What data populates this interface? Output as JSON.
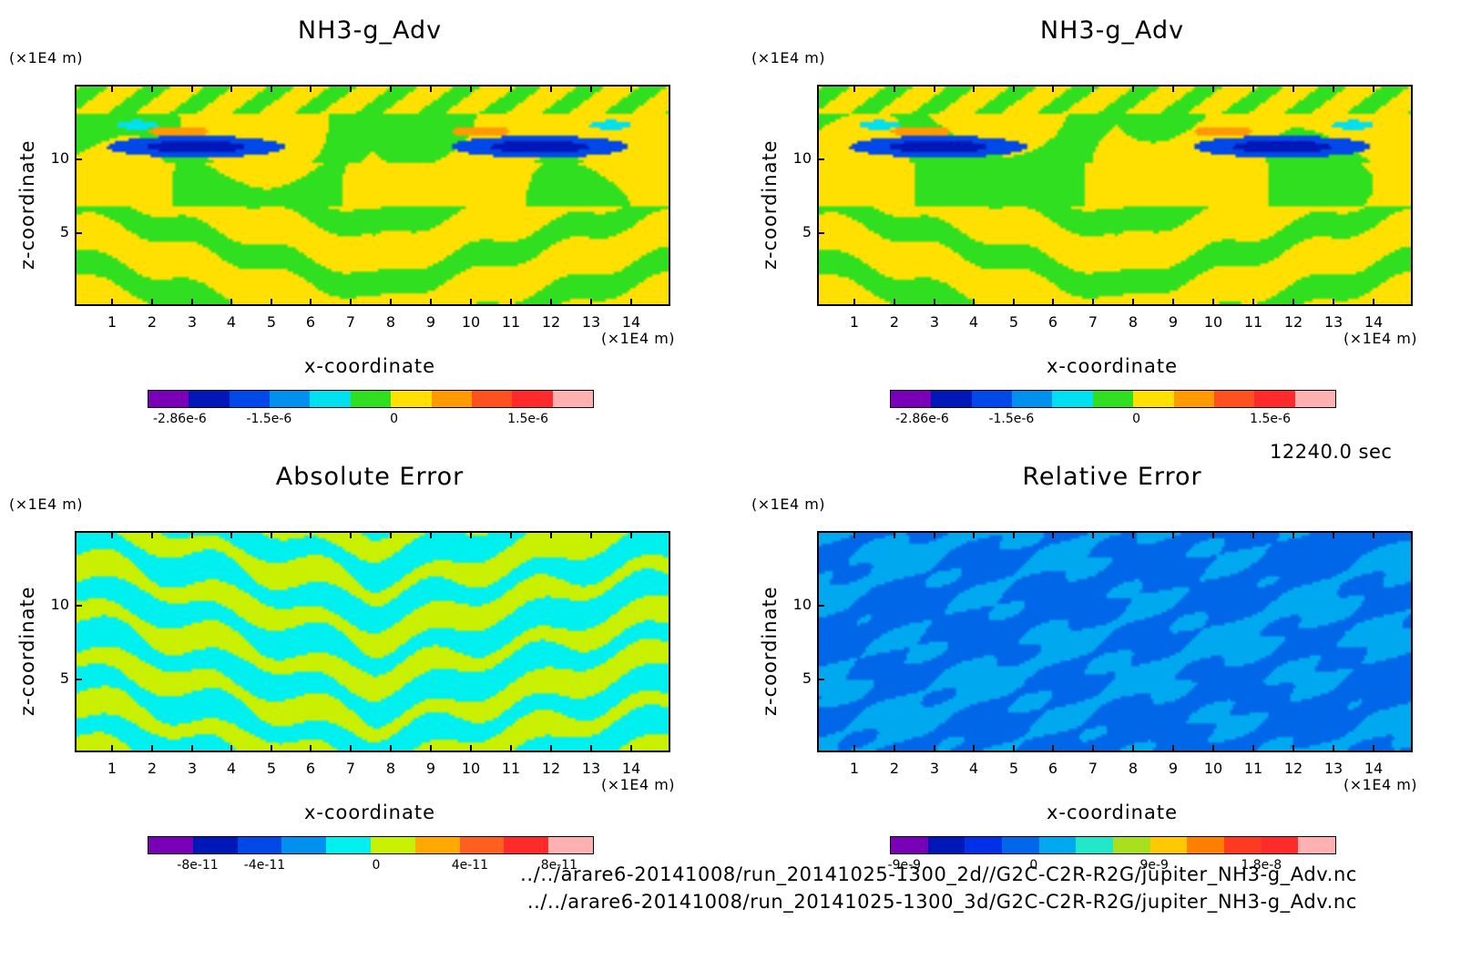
{
  "chart_data": [
    {
      "type": "heatmap",
      "title": "NH3-g_Adv",
      "xlabel": "x-coordinate",
      "ylabel": "z-coordinate",
      "x_unit": "(×1E4 m)",
      "y_unit": "(×1E4 m)",
      "xticks": [
        "1",
        "2",
        "3",
        "4",
        "5",
        "6",
        "7",
        "8",
        "9",
        "10",
        "11",
        "12",
        "13",
        "14"
      ],
      "yticks": [
        "5",
        "10"
      ],
      "xlim": [
        0,
        15
      ],
      "ylim": [
        0,
        15
      ],
      "colorbar": {
        "colors": [
          "#7a00b8",
          "#0018b8",
          "#0048e8",
          "#0090f0",
          "#00e0f0",
          "#30e020",
          "#ffe000",
          "#ff9a00",
          "#ff5020",
          "#ff2a2a",
          "#ffb0b0"
        ],
        "labels": [
          "-2.86e-6",
          "-1.5e-6",
          "0",
          "1.5e-6"
        ]
      }
    },
    {
      "type": "heatmap",
      "title": "NH3-g_Adv",
      "xlabel": "x-coordinate",
      "ylabel": "z-coordinate",
      "x_unit": "(×1E4 m)",
      "y_unit": "(×1E4 m)",
      "xticks": [
        "1",
        "2",
        "3",
        "4",
        "5",
        "6",
        "7",
        "8",
        "9",
        "10",
        "11",
        "12",
        "13",
        "14"
      ],
      "yticks": [
        "5",
        "10"
      ],
      "xlim": [
        0,
        15
      ],
      "ylim": [
        0,
        15
      ],
      "colorbar": {
        "colors": [
          "#7a00b8",
          "#0018b8",
          "#0048e8",
          "#0090f0",
          "#00e0f0",
          "#30e020",
          "#ffe000",
          "#ff9a00",
          "#ff5020",
          "#ff2a2a",
          "#ffb0b0"
        ],
        "labels": [
          "-2.86e-6",
          "-1.5e-6",
          "0",
          "1.5e-6"
        ]
      }
    },
    {
      "type": "heatmap",
      "title": "Absolute Error",
      "xlabel": "x-coordinate",
      "ylabel": "z-coordinate",
      "x_unit": "(×1E4 m)",
      "y_unit": "(×1E4 m)",
      "xticks": [
        "1",
        "2",
        "3",
        "4",
        "5",
        "6",
        "7",
        "8",
        "9",
        "10",
        "11",
        "12",
        "13",
        "14"
      ],
      "yticks": [
        "5",
        "10"
      ],
      "xlim": [
        0,
        15
      ],
      "ylim": [
        0,
        15
      ],
      "colorbar": {
        "colors": [
          "#7a00b8",
          "#0018b8",
          "#0048e8",
          "#0090f0",
          "#00f0f0",
          "#c8f000",
          "#ffa800",
          "#ff6020",
          "#ff2a2a",
          "#ffb0b0"
        ],
        "labels": [
          "-8e-11",
          "-4e-11",
          "0",
          "4e-11",
          "8e-11"
        ]
      }
    },
    {
      "type": "heatmap",
      "title": "Relative Error",
      "xlabel": "x-coordinate",
      "ylabel": "z-coordinate",
      "x_unit": "(×1E4 m)",
      "y_unit": "(×1E4 m)",
      "xticks": [
        "1",
        "2",
        "3",
        "4",
        "5",
        "6",
        "7",
        "8",
        "9",
        "10",
        "11",
        "12",
        "13",
        "14"
      ],
      "yticks": [
        "5",
        "10"
      ],
      "xlim": [
        0,
        15
      ],
      "ylim": [
        0,
        15
      ],
      "colorbar": {
        "colors": [
          "#7a00b8",
          "#0018b8",
          "#0030e8",
          "#0068e8",
          "#00a8f0",
          "#20e8c8",
          "#a8e020",
          "#ffc800",
          "#ff8000",
          "#ff3a20",
          "#ff2a2a",
          "#ffb0b0"
        ],
        "labels": [
          "-9e-9",
          "0",
          "9e-9",
          "1.8e-8"
        ]
      }
    }
  ],
  "time_label": "12240.0 sec",
  "files": [
    "../../arare6-20141008/run_20141025-1300_2d//G2C-C2R-R2G/jupiter_NH3-g_Adv.nc",
    "../../arare6-20141008/run_20141025-1300_3d/G2C-C2R-R2G/jupiter_NH3-g_Adv.nc"
  ]
}
